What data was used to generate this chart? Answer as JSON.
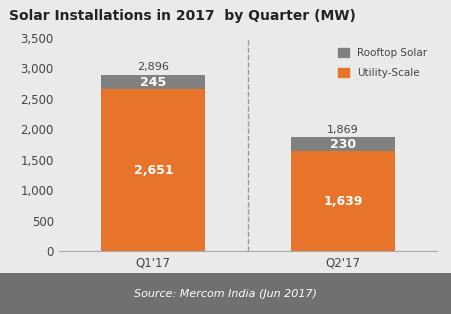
{
  "title": "Solar Installations in 2017  by Quarter (MW)",
  "categories": [
    "Q1'17",
    "Q2'17"
  ],
  "utility_values": [
    2651,
    1639
  ],
  "rooftop_values": [
    245,
    230
  ],
  "total_values": [
    2896,
    1869
  ],
  "utility_color": "#E8732A",
  "rooftop_color": "#808080",
  "background_color": "#EAEAEA",
  "footer_bg_color": "#707070",
  "footer_text": "Source: Mercom India (Jun 2017)",
  "year_label": "2017",
  "ylim": [
    0,
    3500
  ],
  "yticks": [
    0,
    500,
    1000,
    1500,
    2000,
    2500,
    3000,
    3500
  ],
  "legend_labels": [
    "Rooftop Solar",
    "Utility-Scale"
  ],
  "bar_width": 0.55,
  "bar_positions": [
    0,
    1
  ],
  "dashed_line_x": 0.5
}
